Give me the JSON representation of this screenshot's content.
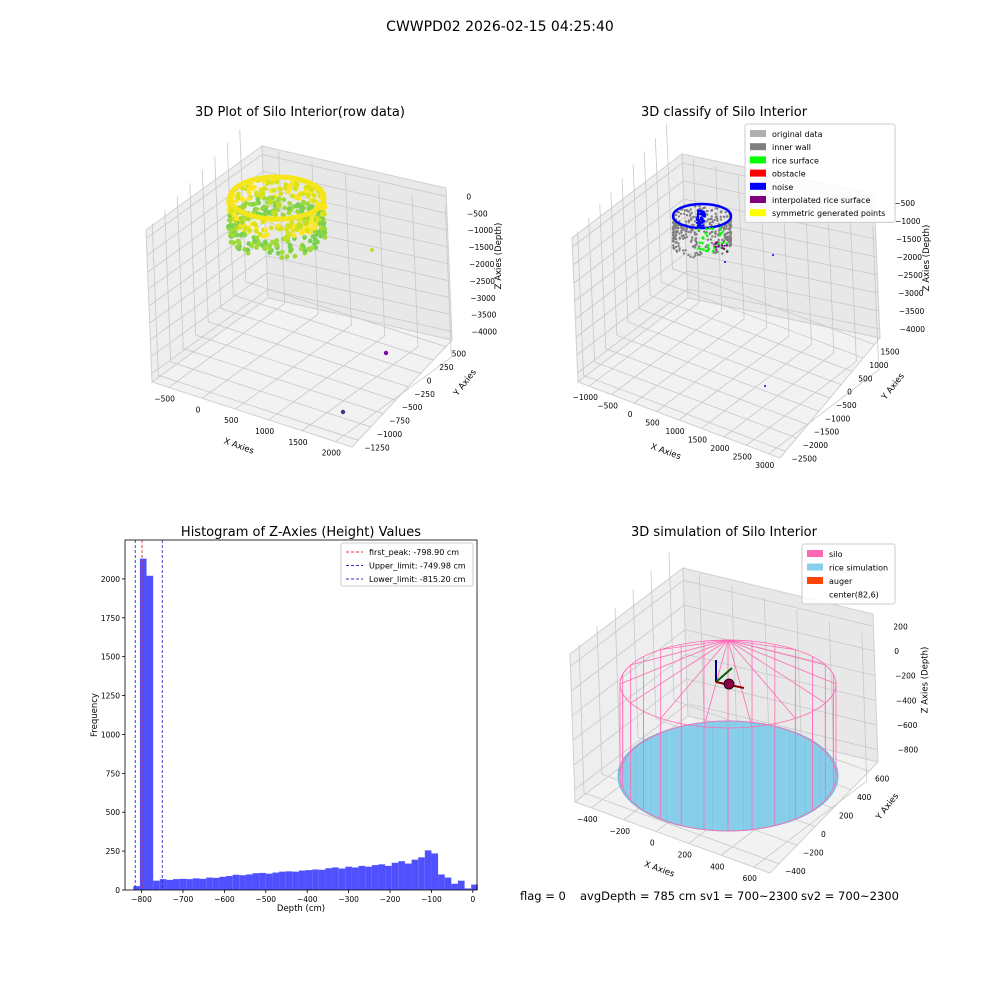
{
  "suptitle": "CWWPD02 2026-02-15 04:25:40",
  "footer": {
    "flag": "flag = 0",
    "avg": "avgDepth = 785 cm",
    "sv1": "sv1 = 700~2300",
    "sv2": "sv2 = 700~2300"
  },
  "chart_data": [
    {
      "type": "scatter",
      "projection": "3d",
      "title": "3D Plot of Silo Interior(row data)",
      "xlabel": "X Axies",
      "ylabel": "Y Axies",
      "zlabel": "Z Axies (Depth)",
      "x_ticks": [
        "−500",
        "0",
        "500",
        "1000",
        "1500",
        "2000"
      ],
      "y_ticks": [
        "−1250",
        "−1000",
        "−750",
        "−500",
        "−250",
        "0",
        "250",
        "500"
      ],
      "z_ticks": [
        "−4000",
        "−3500",
        "−3000",
        "−2500",
        "−2000",
        "−1500",
        "−1000",
        "−500",
        "0"
      ],
      "colormap": "viridis",
      "grid": true
    },
    {
      "type": "scatter",
      "projection": "3d",
      "title": "3D classify of Silo Interior",
      "xlabel": "X Axies",
      "ylabel": "Y Axies",
      "zlabel": "Z Axies (Depth)",
      "x_ticks": [
        "−1000",
        "−500",
        "0",
        "500",
        "1000",
        "1500",
        "2000",
        "2500",
        "3000"
      ],
      "y_ticks": [
        "−2500",
        "−2000",
        "−1500",
        "−1000",
        "−500",
        "0",
        "500",
        "1000",
        "1500"
      ],
      "z_ticks": [
        "−4000",
        "−3500",
        "−3000",
        "−2500",
        "−2000",
        "−1500",
        "−1000",
        "−500"
      ],
      "legend": [
        {
          "label": "original data",
          "color": "#b0b0b0"
        },
        {
          "label": "inner wall",
          "color": "#808080"
        },
        {
          "label": "rice surface",
          "color": "#00ff00"
        },
        {
          "label": "obstacle",
          "color": "#ff0000"
        },
        {
          "label": "noise",
          "color": "#0000ff"
        },
        {
          "label": "interpolated rice surface",
          "color": "#800080"
        },
        {
          "label": "symmetric generated points",
          "color": "#ffff00"
        }
      ],
      "legend_loc": "upper right",
      "grid": true
    },
    {
      "type": "bar",
      "title": "Histogram of Z-Axies (Height) Values",
      "xlabel": "Depth (cm)",
      "ylabel": "Frequency",
      "xlim": [
        -840,
        10
      ],
      "ylim": [
        0,
        2250
      ],
      "x_ticks": [
        -800,
        -700,
        -600,
        -500,
        -400,
        -300,
        -200,
        -100,
        0
      ],
      "y_ticks": [
        0,
        250,
        500,
        750,
        1000,
        1250,
        1500,
        1750,
        2000
      ],
      "bin_width": 16,
      "bins_start": [
        -820,
        -804,
        -788,
        -772,
        -756,
        -740,
        -724,
        -708,
        -692,
        -676,
        -660,
        -644,
        -628,
        -612,
        -596,
        -580,
        -564,
        -548,
        -532,
        -516,
        -500,
        -484,
        -468,
        -452,
        -436,
        -420,
        -404,
        -388,
        -372,
        -356,
        -340,
        -324,
        -308,
        -292,
        -276,
        -260,
        -244,
        -228,
        -212,
        -196,
        -180,
        -164,
        -148,
        -132,
        -116,
        -100,
        -84,
        -68,
        -52,
        -36,
        -20,
        -4
      ],
      "values": [
        25,
        2130,
        2020,
        60,
        70,
        65,
        70,
        72,
        70,
        75,
        72,
        80,
        78,
        85,
        90,
        98,
        95,
        100,
        108,
        110,
        105,
        112,
        118,
        120,
        118,
        125,
        128,
        132,
        130,
        140,
        145,
        138,
        150,
        145,
        155,
        150,
        160,
        165,
        155,
        175,
        185,
        170,
        195,
        210,
        255,
        235,
        100,
        80,
        40,
        60,
        10,
        35
      ],
      "series_color": "#5050ff",
      "vlines": [
        {
          "label": "first_peak: -798.90 cm",
          "x": -798.9,
          "color": "#e03030",
          "style": "dashed"
        },
        {
          "label": "Upper_limit: -749.98 cm",
          "x": -749.98,
          "color": "#3030c0",
          "style": "dashed"
        },
        {
          "label": "Lower_limit: -815.20 cm",
          "x": -815.2,
          "color": "#3030c0",
          "style": "dashed"
        }
      ],
      "legend_loc": "upper right",
      "grid": false
    },
    {
      "type": "surface",
      "projection": "3d",
      "title": "3D simulation of Silo Interior",
      "xlabel": "X Axies",
      "ylabel": "Y Axies",
      "zlabel": "Z Axies (Depth)",
      "x_ticks": [
        "−400",
        "−200",
        "0",
        "200",
        "400",
        "600"
      ],
      "y_ticks": [
        "−400",
        "−200",
        "0",
        "200",
        "400",
        "600"
      ],
      "z_ticks": [
        "−800",
        "−600",
        "−400",
        "−200",
        "0",
        "200"
      ],
      "legend": [
        {
          "label": "silo",
          "color": "#ff69b4"
        },
        {
          "label": "rice simulation",
          "color": "#87ceeb"
        },
        {
          "label": "auger",
          "color": "#ff4500"
        },
        {
          "label": "center(82,6)",
          "color": "none"
        }
      ],
      "legend_loc": "upper right",
      "grid": true
    }
  ]
}
